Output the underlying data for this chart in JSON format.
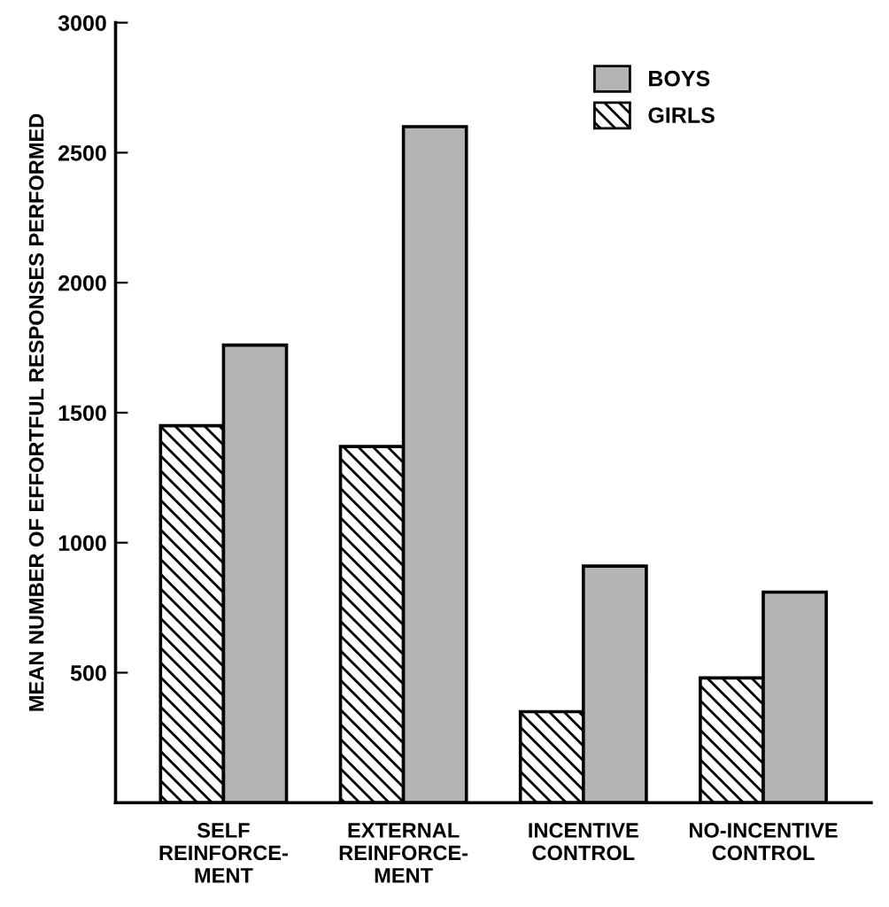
{
  "chart_data": {
    "type": "bar",
    "ylabel": "MEAN NUMBER OF EFFORTFUL RESPONSES PERFORMED",
    "categories": [
      "SELF\nREINFORCE-\nMENT",
      "EXTERNAL\nREINFORCE-\nMENT",
      "INCENTIVE\nCONTROL",
      "NO-INCENTIVE\nCONTROL"
    ],
    "series": [
      {
        "name": "GIRLS",
        "color": "#000000",
        "values": [
          1450,
          1370,
          350,
          480
        ]
      },
      {
        "name": "BOYS",
        "color": "#b4b4b4",
        "values": [
          1760,
          2600,
          910,
          810
        ]
      }
    ],
    "ylim": [
      0,
      3000
    ],
    "yticks": [
      500,
      1000,
      1500,
      2000,
      2500,
      3000
    ],
    "grid": false,
    "legend": "top right"
  }
}
